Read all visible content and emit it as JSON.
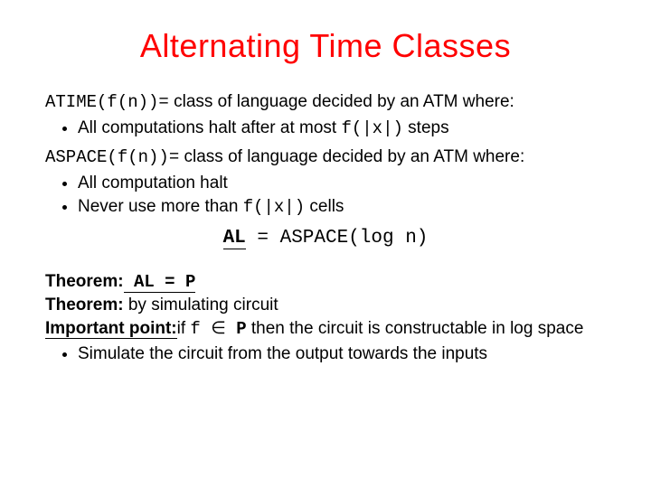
{
  "title": "Alternating Time Classes",
  "line1": {
    "lhs": "ATIME(f(n))=",
    "rhs": " class of language decided by an ATM where:"
  },
  "bullet1": {
    "pre": "All computations halt after at most ",
    "mono": "f(|x|)",
    "post": " steps"
  },
  "line2": {
    "lhs": "ASPACE(f(n))=",
    "rhs": " class of language decided by an ATM where:"
  },
  "bullet2a": "All computation halt",
  "bullet2b": {
    "pre": "Never use more than  ",
    "mono": "f(|x|)",
    "post": " cells"
  },
  "centerEq": {
    "al": "AL",
    "rest": " = ASPACE(log n)"
  },
  "theorem1": {
    "label": "Theorem:",
    "altext": " AL = P"
  },
  "theorem2": {
    "label": "Theorem:",
    "rest": " by simulating circuit"
  },
  "important": {
    "label": "Important point:",
    "pre": "if ",
    "mono1": "f ",
    "in": "∈",
    "mono2": " P",
    "post": " then the circuit is constructable in log space"
  },
  "bullet3": "Simulate the circuit from the output towards the inputs",
  "colors": {
    "title": "#ff0000",
    "text": "#000000",
    "bg": "#ffffff"
  },
  "fonts": {
    "title_size": 36,
    "body_size": 19
  }
}
